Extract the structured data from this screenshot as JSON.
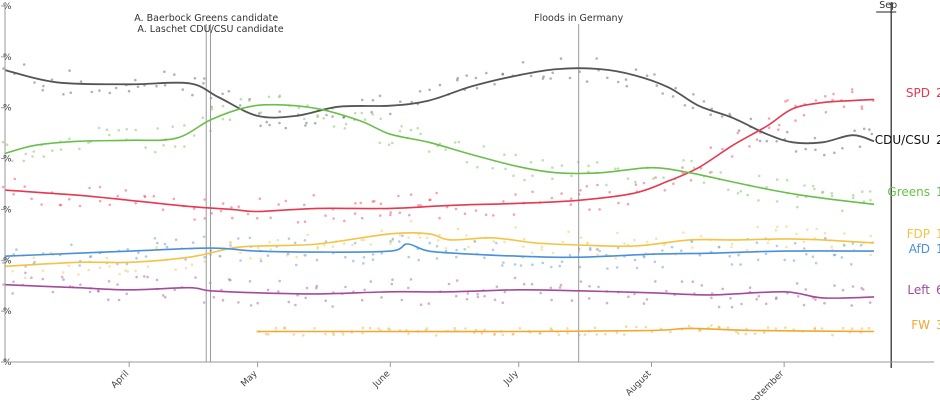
{
  "chart_data": {
    "type": "line",
    "x_axis": {
      "type": "date",
      "range": [
        "2021-03-03",
        "2021-10-06"
      ],
      "ticks": [
        {
          "date": "2021-04-01",
          "label": "April"
        },
        {
          "date": "2021-05-01",
          "label": "May"
        },
        {
          "date": "2021-06-01",
          "label": "June"
        },
        {
          "date": "2021-07-01",
          "label": "July"
        },
        {
          "date": "2021-08-01",
          "label": "August"
        },
        {
          "date": "2021-09-01",
          "label": "September"
        }
      ]
    },
    "y_axis": {
      "range": [
        0,
        35
      ],
      "ticks": [
        {
          "value": 0,
          "label": "%"
        },
        {
          "value": 5,
          "label": "%"
        },
        {
          "value": 10,
          "label": "%"
        },
        {
          "value": 15,
          "label": "%"
        },
        {
          "value": 20,
          "label": "%"
        },
        {
          "value": 25,
          "label": "%"
        },
        {
          "value": 30,
          "label": "%"
        },
        {
          "value": 35,
          "label": "%"
        }
      ]
    },
    "annotations": [
      {
        "date": "2021-04-19",
        "label": "A. Baerbock Greens candidate"
      },
      {
        "date": "2021-04-20",
        "label": "A. Laschet CDU/CSU candidate"
      },
      {
        "date": "2021-07-15",
        "label": "Floods in Germany"
      },
      {
        "date": "2021-09-26",
        "label": "Sep"
      }
    ],
    "series": [
      {
        "name": "CDU/CSU",
        "end_label": "2",
        "color": "#555555",
        "points": [
          [
            "2021-03-03",
            28.7
          ],
          [
            "2021-03-15",
            27.5
          ],
          [
            "2021-04-01",
            27.3
          ],
          [
            "2021-04-15",
            27.4
          ],
          [
            "2021-04-22",
            26.0
          ],
          [
            "2021-05-01",
            24.2
          ],
          [
            "2021-05-10",
            24.2
          ],
          [
            "2021-05-20",
            25.1
          ],
          [
            "2021-06-01",
            25.2
          ],
          [
            "2021-06-10",
            25.7
          ],
          [
            "2021-06-20",
            27.1
          ],
          [
            "2021-07-01",
            28.2
          ],
          [
            "2021-07-10",
            28.8
          ],
          [
            "2021-07-20",
            28.8
          ],
          [
            "2021-07-28",
            28.2
          ],
          [
            "2021-08-05",
            27.0
          ],
          [
            "2021-08-12",
            25.2
          ],
          [
            "2021-08-20",
            24.0
          ],
          [
            "2021-08-28",
            22.4
          ],
          [
            "2021-09-03",
            21.6
          ],
          [
            "2021-09-10",
            21.6
          ],
          [
            "2021-09-17",
            22.3
          ],
          [
            "2021-09-22",
            21.7
          ]
        ]
      },
      {
        "name": "SPD",
        "end_label": "2",
        "color": "#e8384f",
        "points": [
          [
            "2021-03-03",
            16.9
          ],
          [
            "2021-03-20",
            16.4
          ],
          [
            "2021-04-01",
            15.9
          ],
          [
            "2021-04-15",
            15.3
          ],
          [
            "2021-04-25",
            15.0
          ],
          [
            "2021-05-01",
            14.8
          ],
          [
            "2021-05-15",
            15.1
          ],
          [
            "2021-06-01",
            15.1
          ],
          [
            "2021-06-15",
            15.4
          ],
          [
            "2021-07-01",
            15.6
          ],
          [
            "2021-07-15",
            15.9
          ],
          [
            "2021-07-28",
            16.6
          ],
          [
            "2021-08-05",
            17.8
          ],
          [
            "2021-08-12",
            19.1
          ],
          [
            "2021-08-20",
            21.3
          ],
          [
            "2021-08-28",
            23.2
          ],
          [
            "2021-09-03",
            24.9
          ],
          [
            "2021-09-10",
            25.5
          ],
          [
            "2021-09-17",
            25.7
          ],
          [
            "2021-09-22",
            25.8
          ]
        ]
      },
      {
        "name": "Greens",
        "end_label": "1",
        "color": "#6abf4b",
        "points": [
          [
            "2021-03-03",
            20.5
          ],
          [
            "2021-03-10",
            21.3
          ],
          [
            "2021-03-20",
            21.7
          ],
          [
            "2021-04-01",
            21.8
          ],
          [
            "2021-04-12",
            22.0
          ],
          [
            "2021-04-20",
            23.8
          ],
          [
            "2021-04-28",
            25.0
          ],
          [
            "2021-05-05",
            25.3
          ],
          [
            "2021-05-15",
            24.9
          ],
          [
            "2021-05-25",
            23.7
          ],
          [
            "2021-06-01",
            22.4
          ],
          [
            "2021-06-10",
            21.6
          ],
          [
            "2021-06-20",
            20.4
          ],
          [
            "2021-07-01",
            19.2
          ],
          [
            "2021-07-10",
            18.6
          ],
          [
            "2021-07-20",
            18.6
          ],
          [
            "2021-08-01",
            19.1
          ],
          [
            "2021-08-10",
            18.6
          ],
          [
            "2021-08-20",
            17.7
          ],
          [
            "2021-08-28",
            17.0
          ],
          [
            "2021-09-05",
            16.4
          ],
          [
            "2021-09-12",
            16.0
          ],
          [
            "2021-09-22",
            15.5
          ]
        ]
      },
      {
        "name": "FDP",
        "end_label": "1",
        "color": "#f5c242",
        "points": [
          [
            "2021-03-03",
            9.4
          ],
          [
            "2021-03-20",
            9.8
          ],
          [
            "2021-04-01",
            9.8
          ],
          [
            "2021-04-15",
            10.3
          ],
          [
            "2021-04-25",
            11.2
          ],
          [
            "2021-05-01",
            11.4
          ],
          [
            "2021-05-15",
            11.6
          ],
          [
            "2021-06-01",
            12.6
          ],
          [
            "2021-06-10",
            12.6
          ],
          [
            "2021-06-15",
            12.0
          ],
          [
            "2021-06-25",
            12.2
          ],
          [
            "2021-07-05",
            11.7
          ],
          [
            "2021-07-15",
            11.5
          ],
          [
            "2021-07-28",
            11.4
          ],
          [
            "2021-08-10",
            12.0
          ],
          [
            "2021-08-20",
            12.0
          ],
          [
            "2021-09-01",
            12.1
          ],
          [
            "2021-09-10",
            12.0
          ],
          [
            "2021-09-22",
            11.7
          ]
        ]
      },
      {
        "name": "AfD",
        "end_label": "1",
        "color": "#4a90d9",
        "points": [
          [
            "2021-03-03",
            10.4
          ],
          [
            "2021-03-20",
            10.7
          ],
          [
            "2021-04-01",
            10.9
          ],
          [
            "2021-04-20",
            11.2
          ],
          [
            "2021-05-01",
            10.9
          ],
          [
            "2021-05-15",
            10.8
          ],
          [
            "2021-06-01",
            10.9
          ],
          [
            "2021-06-05",
            11.6
          ],
          [
            "2021-06-10",
            10.9
          ],
          [
            "2021-06-20",
            10.6
          ],
          [
            "2021-07-01",
            10.4
          ],
          [
            "2021-07-15",
            10.3
          ],
          [
            "2021-08-01",
            10.6
          ],
          [
            "2021-08-15",
            10.7
          ],
          [
            "2021-09-01",
            10.9
          ],
          [
            "2021-09-22",
            10.9
          ]
        ]
      },
      {
        "name": "Left",
        "end_label": "6",
        "color": "#a24b9a",
        "points": [
          [
            "2021-03-03",
            7.6
          ],
          [
            "2021-03-20",
            7.3
          ],
          [
            "2021-04-01",
            7.1
          ],
          [
            "2021-04-15",
            7.3
          ],
          [
            "2021-04-20",
            7.0
          ],
          [
            "2021-05-01",
            6.8
          ],
          [
            "2021-05-15",
            6.7
          ],
          [
            "2021-06-01",
            6.9
          ],
          [
            "2021-06-15",
            6.9
          ],
          [
            "2021-07-01",
            7.1
          ],
          [
            "2021-07-15",
            7.0
          ],
          [
            "2021-08-01",
            6.8
          ],
          [
            "2021-08-15",
            6.6
          ],
          [
            "2021-09-01",
            6.9
          ],
          [
            "2021-09-10",
            6.3
          ],
          [
            "2021-09-22",
            6.4
          ]
        ]
      },
      {
        "name": "FW",
        "end_label": "3",
        "color": "#f0a830",
        "points": [
          [
            "2021-05-01",
            3.0
          ],
          [
            "2021-06-01",
            3.0
          ],
          [
            "2021-07-01",
            3.0
          ],
          [
            "2021-08-01",
            3.1
          ],
          [
            "2021-08-10",
            3.3
          ],
          [
            "2021-08-25",
            3.1
          ],
          [
            "2021-09-22",
            3.0
          ]
        ]
      }
    ]
  }
}
